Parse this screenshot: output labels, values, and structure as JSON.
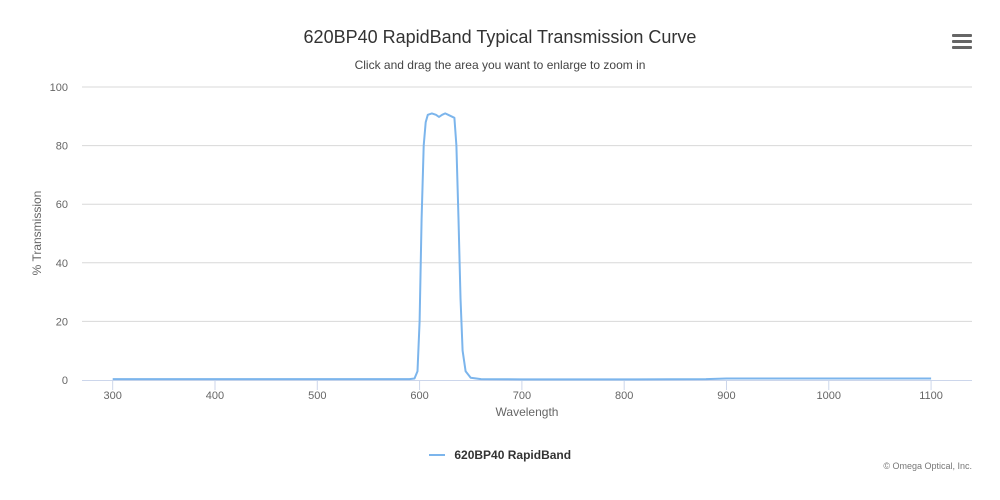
{
  "title": "620BP40 RapidBand Typical Transmission Curve",
  "subtitle": "Click and drag the area you want to enlarge to zoom in",
  "menu_icon": "hamburger-menu-icon",
  "credits": "© Omega Optical, Inc.",
  "colors": {
    "series": "#7cb5ec",
    "grid": "#d8d8d8",
    "axis": "#ccd6eb"
  },
  "chart_data": {
    "type": "line",
    "title": "620BP40 RapidBand Typical Transmission Curve",
    "xlabel": "Wavelength",
    "ylabel": "% Transmission",
    "xlim": [
      270,
      1140
    ],
    "ylim": [
      0,
      100
    ],
    "x_ticks": [
      300,
      400,
      500,
      600,
      700,
      800,
      900,
      1000,
      1100
    ],
    "y_ticks": [
      0,
      20,
      40,
      60,
      80,
      100
    ],
    "grid": true,
    "legend_position": "bottom-center",
    "series": [
      {
        "name": "620BP40 RapidBand",
        "color": "#7cb5ec",
        "points": [
          [
            300,
            0.3
          ],
          [
            400,
            0.3
          ],
          [
            500,
            0.3
          ],
          [
            590,
            0.3
          ],
          [
            595,
            0.5
          ],
          [
            598,
            3
          ],
          [
            600,
            20
          ],
          [
            602,
            55
          ],
          [
            604,
            80
          ],
          [
            606,
            88
          ],
          [
            608,
            90.5
          ],
          [
            612,
            91
          ],
          [
            616,
            90.5
          ],
          [
            619,
            89.8
          ],
          [
            622,
            90.5
          ],
          [
            625,
            91
          ],
          [
            628,
            90.5
          ],
          [
            631,
            90
          ],
          [
            634,
            89.5
          ],
          [
            636,
            80
          ],
          [
            638,
            55
          ],
          [
            640,
            28
          ],
          [
            642,
            10
          ],
          [
            645,
            3
          ],
          [
            650,
            0.8
          ],
          [
            660,
            0.3
          ],
          [
            700,
            0.2
          ],
          [
            800,
            0.2
          ],
          [
            880,
            0.3
          ],
          [
            900,
            0.5
          ],
          [
            950,
            0.5
          ],
          [
            1000,
            0.5
          ],
          [
            1050,
            0.5
          ],
          [
            1100,
            0.5
          ]
        ]
      }
    ]
  }
}
